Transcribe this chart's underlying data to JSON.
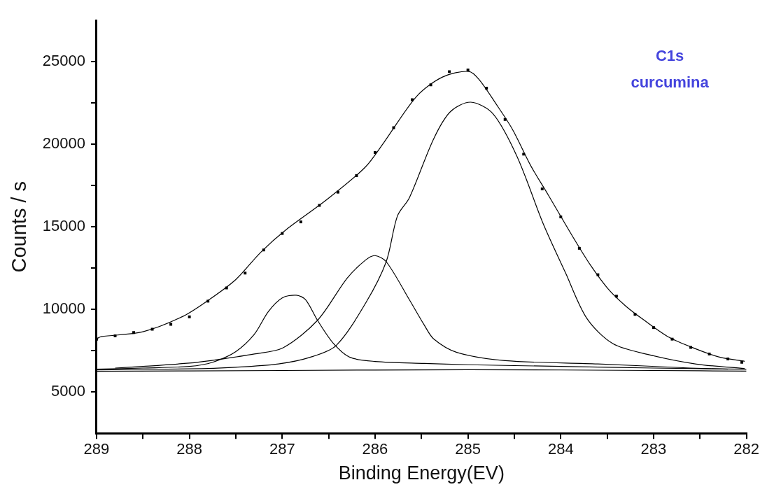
{
  "chart_data": {
    "type": "line",
    "xlabel": "Binding Energy(EV)",
    "ylabel": "Counts / s",
    "annotations": [
      "C1s",
      "curcumina"
    ],
    "xlim": [
      289,
      282
    ],
    "xticks": [
      289,
      {
        "value": 288.5,
        "label": null
      },
      288,
      {
        "value": 287.5,
        "label": null
      },
      287,
      {
        "value": 286.5,
        "label": null
      },
      286,
      {
        "value": 285.5,
        "label": null
      },
      285,
      {
        "value": 284.5,
        "label": null
      },
      284,
      {
        "value": 283.5,
        "label": null
      },
      283,
      {
        "value": 282.5,
        "label": null
      },
      282
    ],
    "ylim": [
      2500,
      27500
    ],
    "yticks": [
      5000,
      {
        "value": 7500,
        "label": null
      },
      10000,
      {
        "value": 12500,
        "label": null
      },
      15000,
      {
        "value": 17500,
        "label": null
      },
      20000,
      {
        "value": 22500,
        "label": null
      },
      25000
    ],
    "grid": false,
    "legend": false,
    "marker": "none",
    "line_style": "solid",
    "series": [
      {
        "type": "scatter",
        "marker": "square",
        "color": "#000000",
        "x": [
          289,
          288.8,
          288.6,
          288.4,
          288.2,
          288.0,
          287.8,
          287.6,
          287.4,
          287.2,
          287.0,
          286.8,
          286.6,
          286.4,
          286.2,
          286.0,
          285.8,
          285.6,
          285.4,
          285.2,
          285.0,
          284.8,
          284.6,
          284.4,
          284.2,
          284.0,
          283.8,
          283.6,
          283.4,
          283.2,
          283.0,
          282.8,
          282.6,
          282.4,
          282.2,
          282.05
        ],
        "values": [
          8200,
          8400,
          8600,
          8800,
          9100,
          9550,
          10500,
          11300,
          12200,
          13600,
          14600,
          15300,
          16300,
          17100,
          18100,
          19500,
          21000,
          22700,
          23600,
          24400,
          24500,
          23400,
          21500,
          19400,
          17300,
          15600,
          13700,
          12100,
          10800,
          9700,
          8900,
          8200,
          7700,
          7300,
          7000,
          6800
        ]
      },
      {
        "color": "#000000",
        "x": [
          289,
          288.95,
          288.5,
          288.07,
          287.79,
          287.5,
          287.23,
          286.94,
          286.53,
          286.11,
          285.91,
          285.55,
          285.27,
          284.99,
          284.88,
          284.7,
          284.52,
          284.32,
          284.14,
          283.85,
          283.68,
          283.49,
          283.3,
          283.11,
          282.83,
          282.54,
          282.29,
          282.02
        ],
        "values": [
          8220,
          8350,
          8650,
          9580,
          10580,
          11810,
          13470,
          14910,
          16610,
          18590,
          20070,
          22920,
          24080,
          24410,
          23920,
          22470,
          20900,
          18670,
          16980,
          14210,
          12680,
          11240,
          10200,
          9380,
          8300,
          7600,
          7110,
          6860
        ]
      },
      {
        "color": "#000000",
        "x": [
          289,
          288.5,
          288,
          287.75,
          287.5,
          287.3,
          287.15,
          287.0,
          286.85,
          286.75,
          286.62,
          286.45,
          286.27,
          286.0,
          285.47,
          285.0,
          284.0,
          283.0,
          282.0
        ],
        "values": [
          6380,
          6450,
          6550,
          6800,
          7450,
          8500,
          9870,
          10700,
          10860,
          10600,
          9340,
          7950,
          7100,
          6850,
          6730,
          6650,
          6550,
          6450,
          6380
        ]
      },
      {
        "color": "#000000",
        "x": [
          288.8,
          288.5,
          288,
          287.77,
          287.3,
          286.99,
          286.62,
          286.3,
          286.1,
          286.0,
          285.88,
          285.63,
          285.47,
          285.37,
          285.12,
          284.6,
          283.6,
          282.6,
          282.2
        ],
        "values": [
          6450,
          6550,
          6750,
          6900,
          7300,
          7680,
          9340,
          11900,
          13000,
          13260,
          12890,
          10580,
          9050,
          8220,
          7400,
          6900,
          6700,
          6450,
          6380
        ]
      },
      {
        "color": "#000000",
        "x": [
          289,
          288,
          287.5,
          287.04,
          286.7,
          286.42,
          286.1,
          285.88,
          285.76,
          285.63,
          285.37,
          285.19,
          284.97,
          284.73,
          284.47,
          284.19,
          283.95,
          283.72,
          283.44,
          283.06,
          282.54,
          282.02
        ],
        "values": [
          6340,
          6400,
          6500,
          6700,
          7100,
          7810,
          10400,
          12890,
          15650,
          16770,
          20320,
          21970,
          22550,
          21850,
          19250,
          15200,
          12230,
          9460,
          7930,
          7270,
          6690,
          6420
        ]
      },
      {
        "color": "#000000",
        "x": [
          289,
          287,
          285,
          283,
          282
        ],
        "values": [
          6250,
          6300,
          6350,
          6300,
          6260
        ]
      }
    ]
  }
}
